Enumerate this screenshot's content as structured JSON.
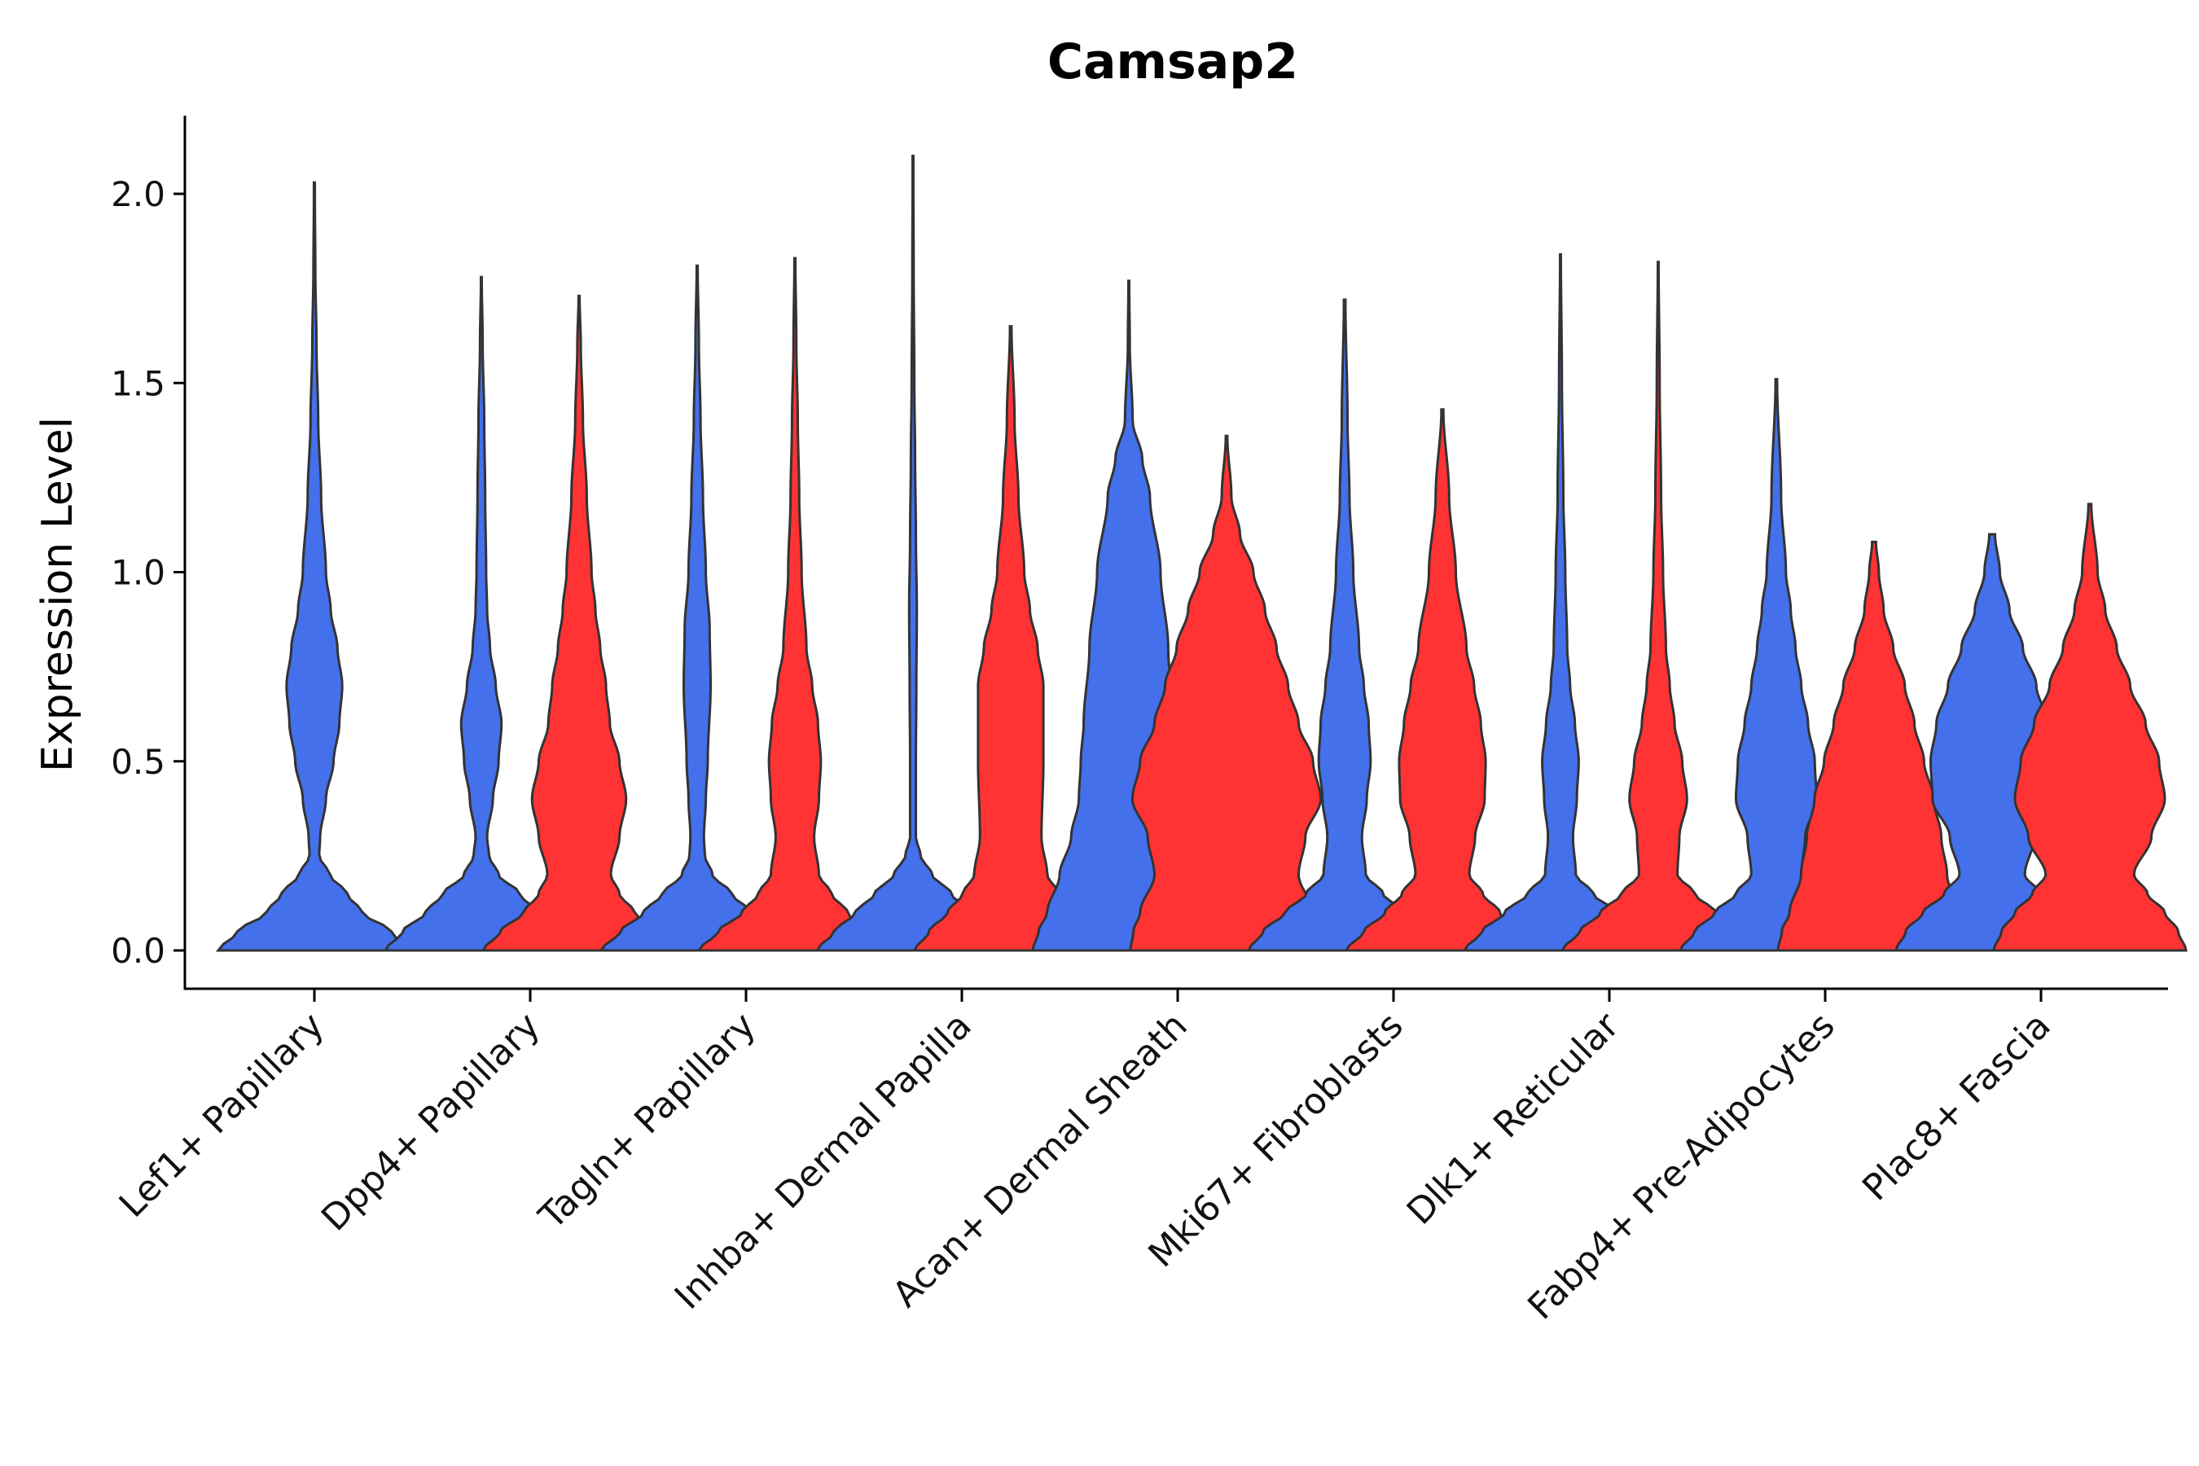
{
  "chart_data": {
    "type": "violin",
    "title": "Camsap2",
    "xlabel": "",
    "ylabel": "Expression Level",
    "ylim": [
      -0.105,
      2.22
    ],
    "yticks": [
      "0.0",
      "0.5",
      "1.0",
      "1.5",
      "2.0"
    ],
    "ytick_values": [
      0.0,
      0.5,
      1.0,
      1.5,
      2.0
    ],
    "grid": false,
    "legend": "none",
    "colors": {
      "blue": "#4470ec",
      "red": "#ff3333"
    },
    "categories": [
      "Lef1+ Papillary",
      "Dpp4+ Papillary",
      "Tagln+ Papillary",
      "Inhba+ Dermal Papilla",
      "Acan+ Dermal Sheath",
      "Mki67+ Fibroblasts",
      "Dlk1+ Reticular",
      "Fabp4+ Pre-Adipocytes",
      "Plac8+ Fascia"
    ],
    "violins": [
      {
        "category": 0,
        "group": "blue",
        "max": 2.03,
        "profile": [
          [
            0.0,
            1.0
          ],
          [
            0.05,
            0.8
          ],
          [
            0.1,
            0.5
          ],
          [
            0.15,
            0.34
          ],
          [
            0.2,
            0.16
          ],
          [
            0.25,
            0.05
          ],
          [
            0.3,
            0.06
          ],
          [
            0.4,
            0.12
          ],
          [
            0.5,
            0.2
          ],
          [
            0.6,
            0.26
          ],
          [
            0.7,
            0.29
          ],
          [
            0.8,
            0.24
          ],
          [
            0.9,
            0.17
          ],
          [
            1.0,
            0.12
          ],
          [
            1.2,
            0.07
          ],
          [
            1.4,
            0.04
          ],
          [
            1.6,
            0.022
          ],
          [
            1.8,
            0.01
          ],
          [
            2.0,
            0.005
          ]
        ]
      },
      {
        "category": 1,
        "group": "blue",
        "max": 1.78,
        "profile": [
          [
            0.0,
            1.0
          ],
          [
            0.05,
            0.82
          ],
          [
            0.1,
            0.58
          ],
          [
            0.15,
            0.4
          ],
          [
            0.2,
            0.18
          ],
          [
            0.25,
            0.08
          ],
          [
            0.3,
            0.06
          ],
          [
            0.4,
            0.12
          ],
          [
            0.5,
            0.18
          ],
          [
            0.6,
            0.21
          ],
          [
            0.7,
            0.15
          ],
          [
            0.8,
            0.09
          ],
          [
            0.9,
            0.06
          ],
          [
            1.0,
            0.05
          ],
          [
            1.2,
            0.04
          ],
          [
            1.4,
            0.03
          ],
          [
            1.6,
            0.014
          ],
          [
            1.78,
            0.004
          ]
        ]
      },
      {
        "category": 1,
        "group": "red",
        "max": 1.73,
        "profile": [
          [
            0.0,
            1.0
          ],
          [
            0.05,
            0.82
          ],
          [
            0.1,
            0.58
          ],
          [
            0.15,
            0.42
          ],
          [
            0.2,
            0.33
          ],
          [
            0.3,
            0.42
          ],
          [
            0.4,
            0.49
          ],
          [
            0.5,
            0.42
          ],
          [
            0.6,
            0.32
          ],
          [
            0.7,
            0.28
          ],
          [
            0.8,
            0.22
          ],
          [
            0.9,
            0.17
          ],
          [
            1.0,
            0.13
          ],
          [
            1.2,
            0.08
          ],
          [
            1.4,
            0.04
          ],
          [
            1.6,
            0.018
          ],
          [
            1.73,
            0.005
          ]
        ]
      },
      {
        "category": 2,
        "group": "blue",
        "max": 1.81,
        "profile": [
          [
            0.0,
            1.0
          ],
          [
            0.05,
            0.8
          ],
          [
            0.1,
            0.56
          ],
          [
            0.15,
            0.36
          ],
          [
            0.2,
            0.16
          ],
          [
            0.25,
            0.08
          ],
          [
            0.3,
            0.07
          ],
          [
            0.4,
            0.09
          ],
          [
            0.5,
            0.11
          ],
          [
            0.7,
            0.14
          ],
          [
            0.85,
            0.13
          ],
          [
            1.0,
            0.09
          ],
          [
            1.2,
            0.06
          ],
          [
            1.4,
            0.035
          ],
          [
            1.6,
            0.018
          ],
          [
            1.81,
            0.005
          ]
        ]
      },
      {
        "category": 2,
        "group": "red",
        "max": 1.83,
        "profile": [
          [
            0.0,
            1.0
          ],
          [
            0.05,
            0.8
          ],
          [
            0.1,
            0.55
          ],
          [
            0.15,
            0.38
          ],
          [
            0.2,
            0.25
          ],
          [
            0.3,
            0.2
          ],
          [
            0.4,
            0.25
          ],
          [
            0.5,
            0.27
          ],
          [
            0.6,
            0.24
          ],
          [
            0.7,
            0.18
          ],
          [
            0.8,
            0.12
          ],
          [
            1.0,
            0.07
          ],
          [
            1.2,
            0.045
          ],
          [
            1.4,
            0.03
          ],
          [
            1.6,
            0.015
          ],
          [
            1.83,
            0.005
          ]
        ]
      },
      {
        "category": 3,
        "group": "blue",
        "max": 2.1,
        "profile": [
          [
            0.0,
            1.0
          ],
          [
            0.05,
            0.82
          ],
          [
            0.1,
            0.6
          ],
          [
            0.15,
            0.4
          ],
          [
            0.2,
            0.2
          ],
          [
            0.25,
            0.08
          ],
          [
            0.3,
            0.03
          ],
          [
            0.5,
            0.03
          ],
          [
            0.7,
            0.035
          ],
          [
            0.9,
            0.04
          ],
          [
            1.1,
            0.03
          ],
          [
            1.3,
            0.022
          ],
          [
            1.5,
            0.014
          ],
          [
            1.8,
            0.007
          ],
          [
            2.1,
            0.003
          ]
        ]
      },
      {
        "category": 3,
        "group": "red",
        "max": 1.65,
        "profile": [
          [
            0.0,
            1.0
          ],
          [
            0.05,
            0.85
          ],
          [
            0.1,
            0.66
          ],
          [
            0.15,
            0.5
          ],
          [
            0.2,
            0.38
          ],
          [
            0.3,
            0.32
          ],
          [
            0.5,
            0.34
          ],
          [
            0.7,
            0.34
          ],
          [
            0.8,
            0.28
          ],
          [
            0.9,
            0.2
          ],
          [
            1.0,
            0.14
          ],
          [
            1.2,
            0.08
          ],
          [
            1.4,
            0.04
          ],
          [
            1.65,
            0.008
          ]
        ]
      },
      {
        "category": 4,
        "group": "blue",
        "max": 1.77,
        "profile": [
          [
            0.0,
            1.0
          ],
          [
            0.05,
            0.94
          ],
          [
            0.1,
            0.85
          ],
          [
            0.2,
            0.72
          ],
          [
            0.3,
            0.6
          ],
          [
            0.4,
            0.52
          ],
          [
            0.5,
            0.5
          ],
          [
            0.6,
            0.47
          ],
          [
            0.8,
            0.41
          ],
          [
            1.0,
            0.33
          ],
          [
            1.2,
            0.22
          ],
          [
            1.3,
            0.14
          ],
          [
            1.4,
            0.04
          ],
          [
            1.6,
            0.01
          ],
          [
            1.77,
            0.004
          ]
        ]
      },
      {
        "category": 4,
        "group": "red",
        "max": 1.36,
        "profile": [
          [
            0.0,
            1.0
          ],
          [
            0.05,
            0.97
          ],
          [
            0.1,
            0.9
          ],
          [
            0.2,
            0.75
          ],
          [
            0.3,
            0.82
          ],
          [
            0.4,
            0.98
          ],
          [
            0.5,
            0.9
          ],
          [
            0.6,
            0.75
          ],
          [
            0.7,
            0.64
          ],
          [
            0.8,
            0.52
          ],
          [
            0.9,
            0.4
          ],
          [
            1.0,
            0.28
          ],
          [
            1.1,
            0.14
          ],
          [
            1.2,
            0.05
          ],
          [
            1.36,
            0.008
          ]
        ]
      },
      {
        "category": 5,
        "group": "blue",
        "max": 1.72,
        "profile": [
          [
            0.0,
            1.0
          ],
          [
            0.05,
            0.85
          ],
          [
            0.1,
            0.62
          ],
          [
            0.15,
            0.4
          ],
          [
            0.2,
            0.22
          ],
          [
            0.3,
            0.18
          ],
          [
            0.4,
            0.23
          ],
          [
            0.5,
            0.27
          ],
          [
            0.6,
            0.25
          ],
          [
            0.7,
            0.2
          ],
          [
            0.8,
            0.15
          ],
          [
            1.0,
            0.09
          ],
          [
            1.2,
            0.05
          ],
          [
            1.4,
            0.03
          ],
          [
            1.72,
            0.008
          ]
        ]
      },
      {
        "category": 5,
        "group": "red",
        "max": 1.43,
        "profile": [
          [
            0.0,
            1.0
          ],
          [
            0.05,
            0.82
          ],
          [
            0.1,
            0.6
          ],
          [
            0.15,
            0.42
          ],
          [
            0.2,
            0.28
          ],
          [
            0.3,
            0.34
          ],
          [
            0.4,
            0.44
          ],
          [
            0.5,
            0.45
          ],
          [
            0.6,
            0.4
          ],
          [
            0.7,
            0.33
          ],
          [
            0.8,
            0.25
          ],
          [
            1.0,
            0.14
          ],
          [
            1.2,
            0.07
          ],
          [
            1.43,
            0.01
          ]
        ]
      },
      {
        "category": 6,
        "group": "blue",
        "max": 1.84,
        "profile": [
          [
            0.0,
            1.0
          ],
          [
            0.05,
            0.82
          ],
          [
            0.1,
            0.58
          ],
          [
            0.15,
            0.34
          ],
          [
            0.2,
            0.16
          ],
          [
            0.3,
            0.13
          ],
          [
            0.4,
            0.17
          ],
          [
            0.5,
            0.19
          ],
          [
            0.6,
            0.15
          ],
          [
            0.7,
            0.1
          ],
          [
            0.8,
            0.07
          ],
          [
            1.0,
            0.05
          ],
          [
            1.2,
            0.03
          ],
          [
            1.5,
            0.015
          ],
          [
            1.84,
            0.004
          ]
        ]
      },
      {
        "category": 6,
        "group": "red",
        "max": 1.82,
        "profile": [
          [
            0.0,
            1.0
          ],
          [
            0.05,
            0.82
          ],
          [
            0.1,
            0.6
          ],
          [
            0.15,
            0.38
          ],
          [
            0.2,
            0.2
          ],
          [
            0.3,
            0.22
          ],
          [
            0.4,
            0.3
          ],
          [
            0.5,
            0.25
          ],
          [
            0.6,
            0.17
          ],
          [
            0.7,
            0.12
          ],
          [
            0.8,
            0.08
          ],
          [
            1.0,
            0.05
          ],
          [
            1.2,
            0.03
          ],
          [
            1.5,
            0.015
          ],
          [
            1.82,
            0.004
          ]
        ]
      },
      {
        "category": 7,
        "group": "blue",
        "max": 1.51,
        "profile": [
          [
            0.0,
            1.0
          ],
          [
            0.05,
            0.85
          ],
          [
            0.1,
            0.64
          ],
          [
            0.15,
            0.42
          ],
          [
            0.2,
            0.26
          ],
          [
            0.3,
            0.3
          ],
          [
            0.4,
            0.42
          ],
          [
            0.5,
            0.4
          ],
          [
            0.6,
            0.33
          ],
          [
            0.7,
            0.26
          ],
          [
            0.8,
            0.2
          ],
          [
            0.9,
            0.15
          ],
          [
            1.0,
            0.1
          ],
          [
            1.2,
            0.05
          ],
          [
            1.51,
            0.008
          ]
        ]
      },
      {
        "category": 7,
        "group": "red",
        "max": 1.08,
        "profile": [
          [
            0.0,
            1.0
          ],
          [
            0.05,
            0.96
          ],
          [
            0.1,
            0.88
          ],
          [
            0.2,
            0.76
          ],
          [
            0.3,
            0.7
          ],
          [
            0.4,
            0.62
          ],
          [
            0.5,
            0.52
          ],
          [
            0.6,
            0.42
          ],
          [
            0.7,
            0.32
          ],
          [
            0.8,
            0.2
          ],
          [
            0.9,
            0.1
          ],
          [
            1.0,
            0.05
          ],
          [
            1.08,
            0.02
          ]
        ]
      },
      {
        "category": 8,
        "group": "blue",
        "max": 1.1,
        "profile": [
          [
            0.0,
            1.0
          ],
          [
            0.05,
            0.9
          ],
          [
            0.1,
            0.72
          ],
          [
            0.15,
            0.5
          ],
          [
            0.2,
            0.34
          ],
          [
            0.3,
            0.44
          ],
          [
            0.4,
            0.62
          ],
          [
            0.5,
            0.64
          ],
          [
            0.6,
            0.58
          ],
          [
            0.7,
            0.46
          ],
          [
            0.8,
            0.32
          ],
          [
            0.9,
            0.18
          ],
          [
            1.0,
            0.08
          ],
          [
            1.1,
            0.03
          ]
        ]
      },
      {
        "category": 8,
        "group": "red",
        "max": 1.18,
        "profile": [
          [
            0.0,
            1.0
          ],
          [
            0.05,
            0.92
          ],
          [
            0.1,
            0.78
          ],
          [
            0.15,
            0.6
          ],
          [
            0.2,
            0.46
          ],
          [
            0.3,
            0.64
          ],
          [
            0.4,
            0.78
          ],
          [
            0.5,
            0.72
          ],
          [
            0.6,
            0.58
          ],
          [
            0.7,
            0.42
          ],
          [
            0.8,
            0.28
          ],
          [
            0.9,
            0.16
          ],
          [
            1.0,
            0.08
          ],
          [
            1.18,
            0.015
          ]
        ]
      }
    ]
  }
}
